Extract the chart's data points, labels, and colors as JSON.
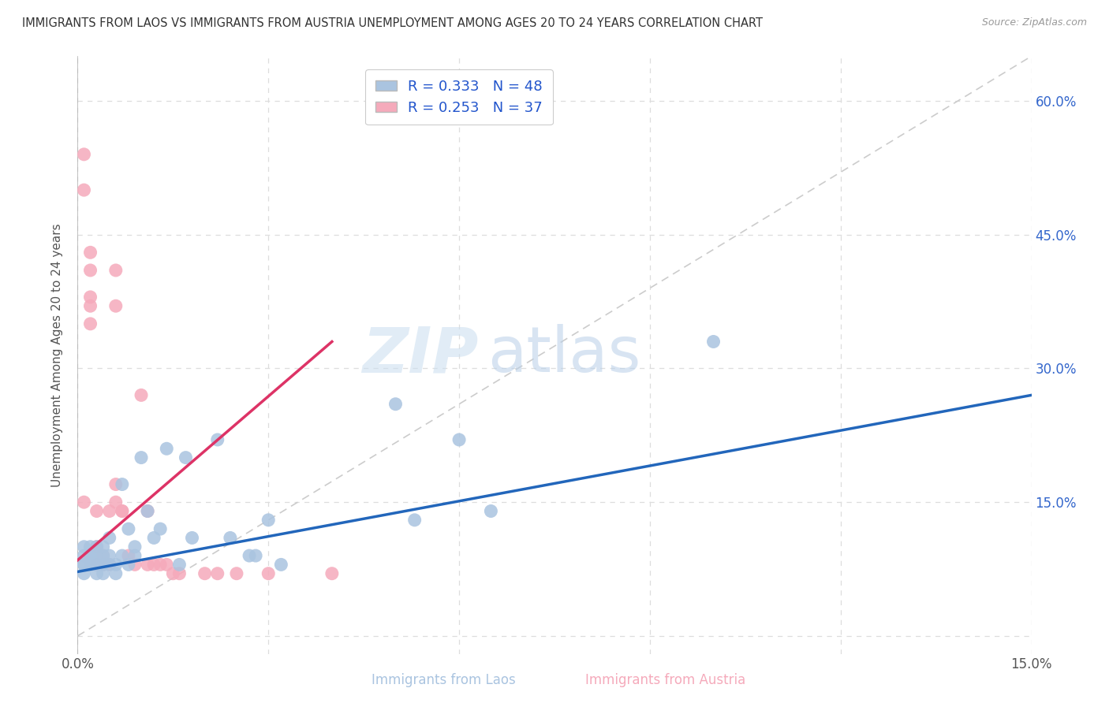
{
  "title": "IMMIGRANTS FROM LAOS VS IMMIGRANTS FROM AUSTRIA UNEMPLOYMENT AMONG AGES 20 TO 24 YEARS CORRELATION CHART",
  "source": "Source: ZipAtlas.com",
  "ylabel": "Unemployment Among Ages 20 to 24 years",
  "xlabel_laos": "Immigrants from Laos",
  "xlabel_austria": "Immigrants from Austria",
  "xlim": [
    0.0,
    0.15
  ],
  "ylim": [
    -0.02,
    0.65
  ],
  "xticks": [
    0.0,
    0.03,
    0.06,
    0.09,
    0.12,
    0.15
  ],
  "yticks": [
    0.0,
    0.15,
    0.3,
    0.45,
    0.6
  ],
  "laos_R": 0.333,
  "laos_N": 48,
  "austria_R": 0.253,
  "austria_N": 37,
  "laos_color": "#aac4e0",
  "austria_color": "#f5aabb",
  "laos_line_color": "#2266bb",
  "austria_line_color": "#dd3366",
  "diagonal_color": "#cccccc",
  "background_color": "#ffffff",
  "grid_color": "#dddddd",
  "watermark_zip": "ZIP",
  "watermark_atlas": "atlas",
  "laos_x": [
    0.001,
    0.001,
    0.001,
    0.001,
    0.001,
    0.002,
    0.002,
    0.002,
    0.002,
    0.002,
    0.003,
    0.003,
    0.003,
    0.003,
    0.004,
    0.004,
    0.004,
    0.004,
    0.005,
    0.005,
    0.005,
    0.006,
    0.006,
    0.007,
    0.007,
    0.008,
    0.008,
    0.009,
    0.009,
    0.01,
    0.011,
    0.012,
    0.013,
    0.014,
    0.016,
    0.017,
    0.018,
    0.022,
    0.024,
    0.027,
    0.028,
    0.03,
    0.032,
    0.05,
    0.053,
    0.06,
    0.065,
    0.1
  ],
  "laos_y": [
    0.08,
    0.09,
    0.08,
    0.1,
    0.07,
    0.09,
    0.08,
    0.1,
    0.09,
    0.08,
    0.09,
    0.08,
    0.1,
    0.07,
    0.08,
    0.09,
    0.1,
    0.07,
    0.08,
    0.09,
    0.11,
    0.07,
    0.08,
    0.09,
    0.17,
    0.08,
    0.12,
    0.09,
    0.1,
    0.2,
    0.14,
    0.11,
    0.12,
    0.21,
    0.08,
    0.2,
    0.11,
    0.22,
    0.11,
    0.09,
    0.09,
    0.13,
    0.08,
    0.26,
    0.13,
    0.22,
    0.14,
    0.33
  ],
  "austria_x": [
    0.001,
    0.001,
    0.001,
    0.002,
    0.002,
    0.002,
    0.002,
    0.002,
    0.003,
    0.003,
    0.003,
    0.004,
    0.004,
    0.004,
    0.005,
    0.005,
    0.006,
    0.006,
    0.006,
    0.006,
    0.007,
    0.007,
    0.008,
    0.009,
    0.01,
    0.011,
    0.011,
    0.012,
    0.013,
    0.014,
    0.015,
    0.016,
    0.02,
    0.022,
    0.025,
    0.03,
    0.04
  ],
  "austria_y": [
    0.54,
    0.5,
    0.15,
    0.43,
    0.41,
    0.37,
    0.38,
    0.35,
    0.14,
    0.1,
    0.08,
    0.09,
    0.08,
    0.08,
    0.08,
    0.14,
    0.41,
    0.37,
    0.17,
    0.15,
    0.14,
    0.14,
    0.09,
    0.08,
    0.27,
    0.08,
    0.14,
    0.08,
    0.08,
    0.08,
    0.07,
    0.07,
    0.07,
    0.07,
    0.07,
    0.07,
    0.07
  ],
  "laos_trend_x0": 0.0,
  "laos_trend_y0": 0.072,
  "laos_trend_x1": 0.15,
  "laos_trend_y1": 0.27,
  "austria_trend_x0": 0.0,
  "austria_trend_y0": 0.085,
  "austria_trend_x1": 0.04,
  "austria_trend_y1": 0.33
}
